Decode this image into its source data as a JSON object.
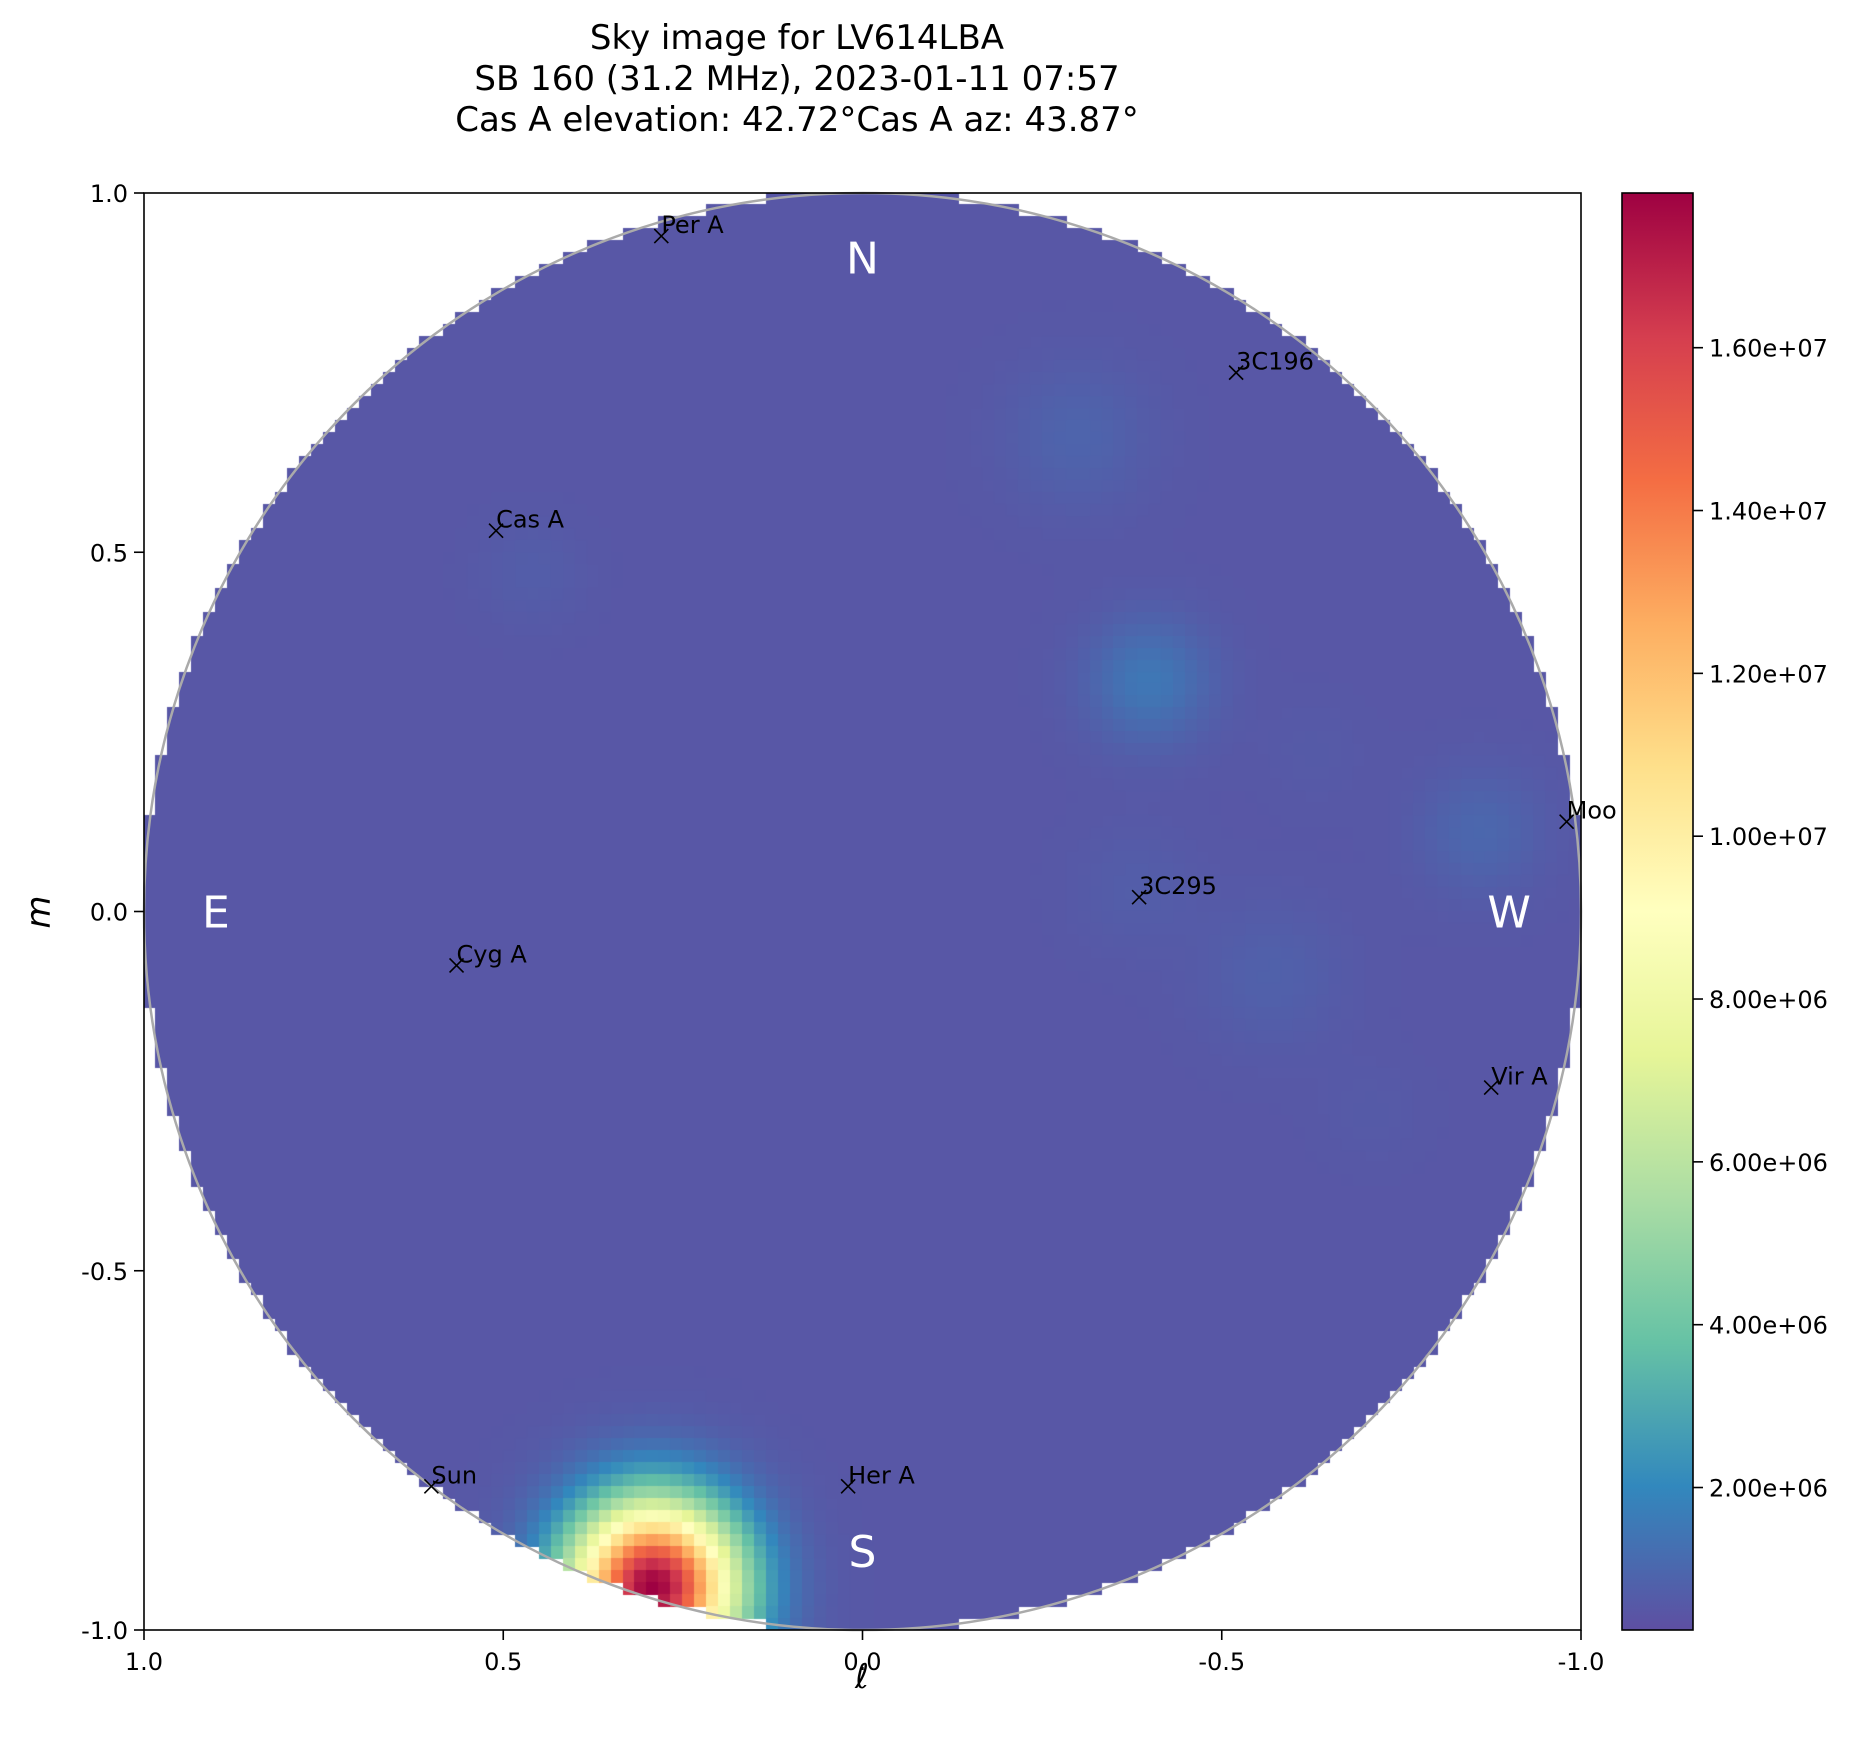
{
  "chart_data": {
    "type": "heatmap",
    "title_lines": [
      "Sky image for LV614LBA",
      "SB 160 (31.2 MHz), 2023-01-11 07:57",
      "Cas A elevation: 42.72°Cas A az: 43.87°"
    ],
    "xlabel": "ℓ",
    "ylabel": "m",
    "xlim": [
      1.0,
      -1.0
    ],
    "ylim": [
      -1.0,
      1.0
    ],
    "x_ticks": [
      1.0,
      0.5,
      0.0,
      -0.5,
      -1.0
    ],
    "x_tick_labels": [
      "1.0",
      "0.5",
      "0.0",
      "-0.5",
      "-1.0"
    ],
    "y_ticks": [
      1.0,
      0.5,
      0.0,
      -0.5,
      -1.0
    ],
    "y_tick_labels": [
      "1.0",
      "0.5",
      "0.0",
      "-0.5",
      "-1.0"
    ],
    "colormap": "Spectral_r",
    "colorbar": {
      "min": 250000,
      "max": 17900000,
      "ticks": [
        2000000,
        4000000,
        6000000,
        8000000,
        10000000,
        12000000,
        14000000,
        16000000
      ],
      "tick_labels": [
        "2.00e+06",
        "4.00e+06",
        "6.00e+06",
        "8.00e+06",
        "1.00e+07",
        "1.20e+07",
        "1.40e+07",
        "1.60e+07"
      ]
    },
    "compass": [
      {
        "label": "N",
        "l": 0.0,
        "m": 0.91
      },
      {
        "label": "S",
        "l": 0.0,
        "m": -0.89
      },
      {
        "label": "E",
        "l": 0.9,
        "m": 0.0
      },
      {
        "label": "W",
        "l": -0.9,
        "m": 0.0
      }
    ],
    "sources": [
      {
        "name": "Per A",
        "l": 0.28,
        "m": 0.94
      },
      {
        "name": "3C196",
        "l": -0.52,
        "m": 0.75
      },
      {
        "name": "Cas A",
        "l": 0.51,
        "m": 0.53
      },
      {
        "name": "Moo",
        "l": -0.98,
        "m": 0.125
      },
      {
        "name": "3C295",
        "l": -0.385,
        "m": 0.02
      },
      {
        "name": "Cyg A",
        "l": 0.565,
        "m": -0.075
      },
      {
        "name": "Vir A",
        "l": -0.875,
        "m": -0.245
      },
      {
        "name": "Sun",
        "l": 0.6,
        "m": -0.8
      },
      {
        "name": "Her A",
        "l": 0.02,
        "m": -0.8
      }
    ],
    "background_level": 500000,
    "blobs": [
      {
        "l": 0.29,
        "m": -0.94,
        "peak": 17900000,
        "sigma": 0.08
      },
      {
        "l": -0.4,
        "m": 0.32,
        "peak": 1500000,
        "sigma": 0.06
      },
      {
        "l": -0.3,
        "m": 0.66,
        "peak": 900000,
        "sigma": 0.07
      },
      {
        "l": -0.86,
        "m": 0.11,
        "peak": 1000000,
        "sigma": 0.06
      },
      {
        "l": -0.57,
        "m": -0.09,
        "peak": 800000,
        "sigma": 0.07
      },
      {
        "l": -0.38,
        "m": 0.03,
        "peak": 700000,
        "sigma": 0.06
      },
      {
        "l": 0.46,
        "m": 0.47,
        "peak": 700000,
        "sigma": 0.05
      },
      {
        "l": -0.63,
        "m": 0.22,
        "peak": 600000,
        "sigma": 0.05
      },
      {
        "l": -0.71,
        "m": -0.28,
        "peak": 600000,
        "sigma": 0.05
      },
      {
        "l": 0.07,
        "m": 0.95,
        "peak": 500000,
        "sigma": 0.06
      },
      {
        "l": -0.8,
        "m": -0.49,
        "peak": 500000,
        "sigma": 0.05
      }
    ]
  }
}
